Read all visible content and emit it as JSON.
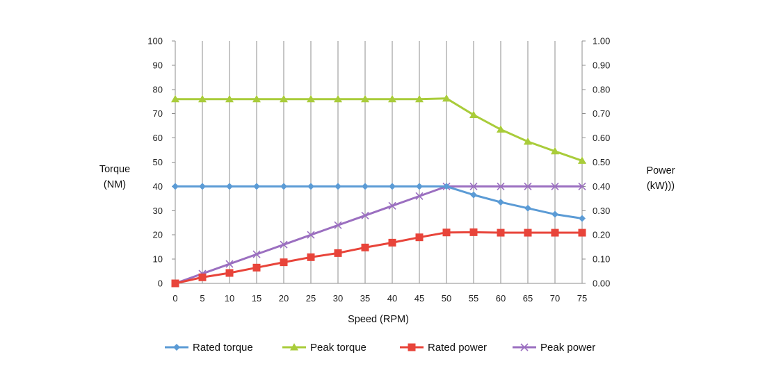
{
  "chart_data": {
    "type": "line",
    "x": [
      0,
      5,
      10,
      15,
      20,
      25,
      30,
      35,
      40,
      45,
      50,
      55,
      60,
      65,
      70,
      75
    ],
    "x_ticks": [
      "0",
      "5",
      "10",
      "15",
      "20",
      "25",
      "30",
      "35",
      "40",
      "45",
      "50",
      "55",
      "60",
      "65",
      "70",
      "75"
    ],
    "xlim": [
      0,
      75
    ],
    "xlabel": "Speed (RPM)",
    "ylabel_left": [
      "Torque",
      "(NM)"
    ],
    "ylabel_right": [
      "Power",
      "(kW)))"
    ],
    "ylim_left": [
      0,
      100
    ],
    "ylim_right": [
      0,
      1.0
    ],
    "y_ticks_left": [
      "0",
      "10",
      "20",
      "30",
      "40",
      "50",
      "60",
      "70",
      "80",
      "90",
      "100"
    ],
    "y_ticks_right": [
      "0.00",
      "0.10",
      "0.20",
      "0.30",
      "0.40",
      "0.50",
      "0.60",
      "0.70",
      "0.80",
      "0.90",
      "1.00"
    ],
    "grid": "vertical",
    "legend_position": "bottom",
    "series": [
      {
        "name": "Rated torque",
        "axis": "left",
        "marker": "diamond",
        "color": "#5B9BD5",
        "values": [
          40,
          40,
          40,
          40,
          40,
          40,
          40,
          40,
          40,
          40,
          40,
          36.5,
          33.5,
          31,
          28.5,
          26.8
        ]
      },
      {
        "name": "Peak torque",
        "axis": "left",
        "marker": "triangle",
        "color": "#A9CC3A",
        "values": [
          76,
          76,
          76,
          76,
          76,
          76,
          76,
          76,
          76,
          76,
          76.3,
          69.5,
          63.5,
          58.5,
          54.5,
          50.6
        ]
      },
      {
        "name": "Rated power",
        "axis": "right",
        "marker": "square",
        "color": "#E8443A",
        "values": [
          0,
          0.025,
          0.043,
          0.065,
          0.087,
          0.108,
          0.125,
          0.148,
          0.168,
          0.19,
          0.21,
          0.211,
          0.209,
          0.209,
          0.209,
          0.209
        ]
      },
      {
        "name": "Peak power",
        "axis": "right",
        "marker": "x",
        "color": "#9B6FC0",
        "values": [
          0,
          0.04,
          0.08,
          0.12,
          0.16,
          0.2,
          0.24,
          0.28,
          0.32,
          0.36,
          0.4,
          0.4,
          0.4,
          0.4,
          0.4,
          0.4
        ]
      }
    ]
  }
}
